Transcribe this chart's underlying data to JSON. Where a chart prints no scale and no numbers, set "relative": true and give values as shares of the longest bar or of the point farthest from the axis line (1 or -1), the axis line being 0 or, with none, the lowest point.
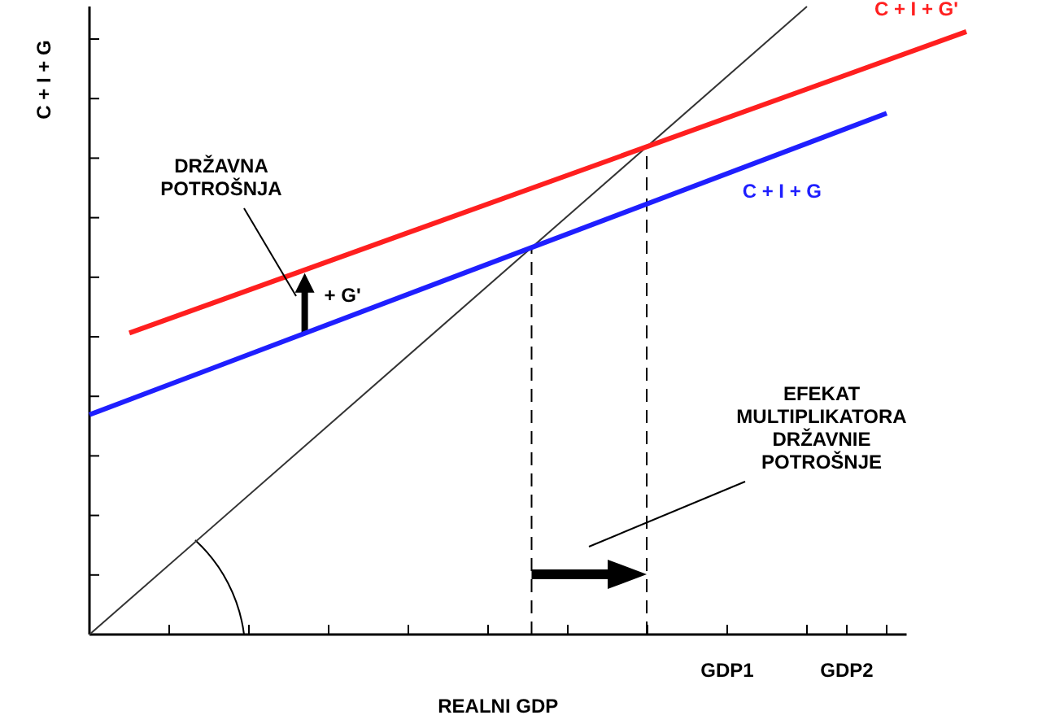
{
  "chart_data": {
    "type": "line",
    "relative": true,
    "xlabel": "REALNI GDP",
    "ylabel": "C + I + G",
    "legend": false,
    "categories": [
      null,
      null,
      null,
      null,
      null,
      null,
      null,
      null,
      null,
      null,
      null,
      null,
      null,
      null,
      null,
      null,
      "GDP1",
      null,
      null,
      "GDP2",
      null,
      null,
      null
    ],
    "series": [
      {
        "color": "#333333",
        "values": [
          0,
          null,
          null,
          null,
          null,
          null,
          null,
          null,
          null,
          null,
          null,
          null,
          null,
          null,
          null,
          null,
          null,
          null,
          1,
          null,
          null,
          null,
          null
        ]
      },
      {
        "name": "C + I + G",
        "color": "#1f1fff",
        "values": [
          0.35,
          null,
          null,
          null,
          null,
          null,
          null,
          null,
          null,
          null,
          null,
          null,
          null,
          null,
          null,
          null,
          null,
          null,
          null,
          null,
          0.83,
          null,
          null
        ]
      },
      {
        "name": "C + I + G'",
        "color": "#ff1f1f",
        "values": [
          null,
          0.48,
          null,
          null,
          null,
          null,
          null,
          null,
          null,
          null,
          null,
          null,
          null,
          null,
          null,
          null,
          null,
          null,
          null,
          null,
          null,
          null,
          0.96
        ]
      }
    ],
    "annotations": [
      "DRŽAVNA\nPOTROŠNJA",
      "+ G'",
      "EFEKAT\nMULTIPLIKATORA\nDRŽAVNIE\nPOTROŠNJE"
    ]
  }
}
